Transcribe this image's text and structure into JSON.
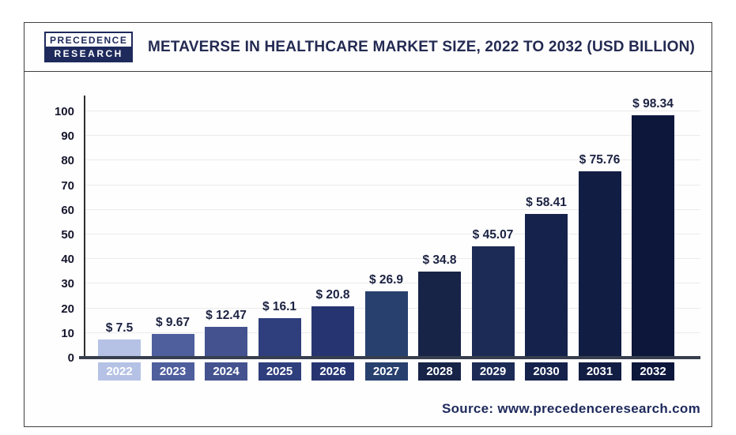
{
  "header": {
    "logo": {
      "line1": "PRECEDENCE",
      "line2": "RESEARCH"
    },
    "title": "METAVERSE IN HEALTHCARE MARKET SIZE, 2022 TO 2032 (USD BILLION)"
  },
  "chart_data": {
    "type": "bar",
    "title": "METAVERSE IN HEALTHCARE MARKET SIZE, 2022 TO 2032 (USD BILLION)",
    "categories": [
      "2022",
      "2023",
      "2024",
      "2025",
      "2026",
      "2027",
      "2028",
      "2029",
      "2030",
      "2031",
      "2032"
    ],
    "values": [
      7.5,
      9.67,
      12.47,
      16.1,
      20.8,
      26.9,
      34.8,
      45.07,
      58.41,
      75.76,
      98.34
    ],
    "value_labels": [
      "$ 7.5",
      "$ 9.67",
      "$ 12.47",
      "$ 16.1",
      "$ 20.8",
      "$ 26.9",
      "$ 34.8",
      "$ 45.07",
      "$ 58.41",
      "$ 75.76",
      "$ 98.34"
    ],
    "bar_colors": [
      "#b5c2e5",
      "#4f5f9d",
      "#44538f",
      "#2f3e7c",
      "#263572",
      "#27406e",
      "#172448",
      "#1c2b56",
      "#15234c",
      "#121d44",
      "#0d173c"
    ],
    "xlabel": "",
    "ylabel": "",
    "ylim": [
      0,
      100
    ],
    "yticks": [
      0,
      10,
      20,
      30,
      40,
      50,
      60,
      70,
      80,
      90,
      100
    ],
    "grid": true,
    "legend": false
  },
  "footer": {
    "source": "Source: www.precedenceresearch.com"
  }
}
